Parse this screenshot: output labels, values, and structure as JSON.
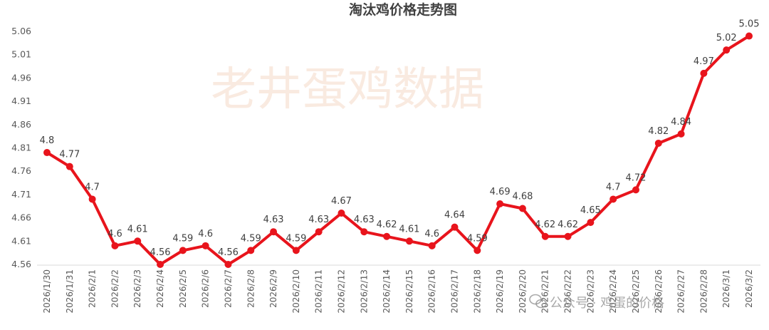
{
  "chart_data": {
    "type": "line",
    "title": "淘汰鸡价格走势图",
    "xlabel": "",
    "ylabel": "",
    "categories": [
      "2026/1/30",
      "2026/1/31",
      "2026/2/1",
      "2026/2/2",
      "2026/2/3",
      "2026/2/4",
      "2026/2/5",
      "2026/2/6",
      "2026/2/7",
      "2026/2/8",
      "2026/2/9",
      "2026/2/10",
      "2026/2/11",
      "2026/2/12",
      "2026/2/13",
      "2026/2/14",
      "2026/2/15",
      "2026/2/16",
      "2026/2/17",
      "2026/2/18",
      "2026/2/19",
      "2026/2/20",
      "2026/2/21",
      "2026/2/22",
      "2026/2/23",
      "2026/2/24",
      "2026/2/25",
      "2026/2/26",
      "2026/2/27",
      "2026/2/28",
      "2026/3/1",
      "2026/3/2"
    ],
    "values": [
      4.8,
      4.77,
      4.7,
      4.6,
      4.61,
      4.56,
      4.59,
      4.6,
      4.56,
      4.59,
      4.63,
      4.59,
      4.63,
      4.67,
      4.63,
      4.62,
      4.61,
      4.6,
      4.64,
      4.59,
      4.69,
      4.68,
      4.62,
      4.62,
      4.65,
      4.7,
      4.72,
      4.82,
      4.84,
      4.97,
      5.02,
      5.05
    ],
    "data_labels": [
      "4.8",
      "4.77",
      "4.7",
      "4.6",
      "4.61",
      "4.56",
      "4.59",
      "4.6",
      "4.56",
      "4.59",
      "4.63",
      "4.59",
      "4.63",
      "4.67",
      "4.63",
      "4.62",
      "4.61",
      "4.6",
      "4.64",
      "4.59",
      "4.69",
      "4.68",
      "4.62",
      "4.62",
      "4.65",
      "4.7",
      "4.72",
      "4.82",
      "4.84",
      "4.97",
      "5.02",
      "5.05"
    ],
    "ylim": [
      4.56,
      5.06
    ],
    "yticks": [
      "4.56",
      "4.61",
      "4.66",
      "4.71",
      "4.76",
      "4.81",
      "4.86",
      "4.91",
      "4.96",
      "5.01",
      "5.06"
    ],
    "grid": false,
    "legend": "none",
    "colors": {
      "line": "#e8141c",
      "marker": "#e8141c",
      "watermark": "#f5d9c8"
    }
  },
  "watermark": {
    "text": "老井蛋鸡数据"
  },
  "footer_watermark": {
    "text": "公众号 · 鸡蛋的价格",
    "icon": "wechat-icon"
  }
}
